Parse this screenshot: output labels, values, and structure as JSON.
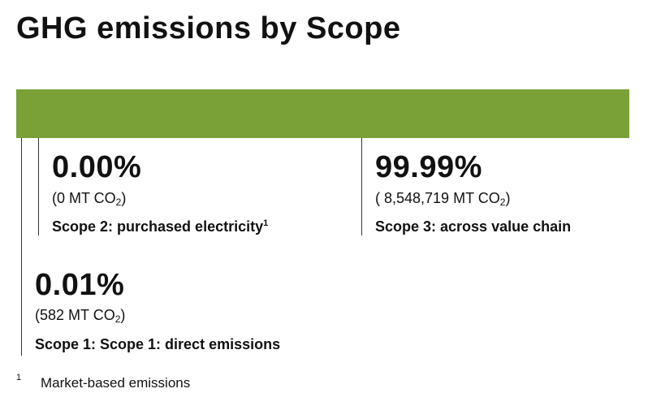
{
  "chart_data": {
    "type": "bar",
    "title": "GHG emissions by Scope",
    "colors": {
      "bar": "#7aa038"
    },
    "items": [
      {
        "id": "scope1",
        "percent": "0.01%",
        "amount_prefix": "(582 MT CO",
        "amount_sub": "2",
        "amount_suffix": ")",
        "label": "Scope 1: Scope 1: direct emissions",
        "footnote_ref": ""
      },
      {
        "id": "scope2",
        "percent": "0.00%",
        "amount_prefix": "(0 MT CO",
        "amount_sub": "2",
        "amount_suffix": ")",
        "label": "Scope 2: purchased electricity",
        "footnote_ref": "1"
      },
      {
        "id": "scope3",
        "percent": "99.99%",
        "amount_prefix": "( 8,548,719 MT CO",
        "amount_sub": "2",
        "amount_suffix": ")",
        "label": "Scope 3: across value chain",
        "footnote_ref": ""
      }
    ],
    "footnote": {
      "mark": "1",
      "text": "Market-based emissions"
    }
  }
}
